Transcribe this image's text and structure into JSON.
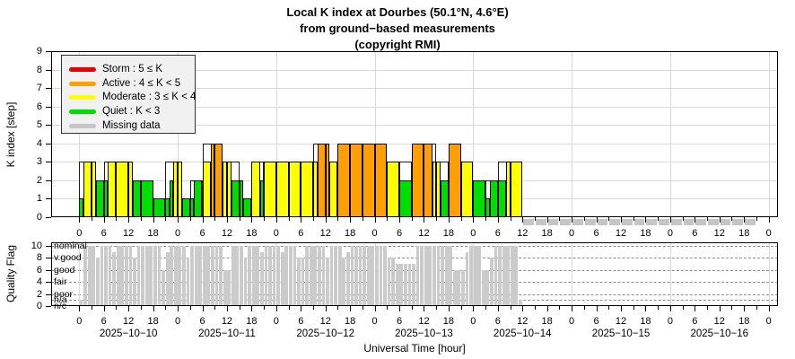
{
  "title": {
    "line1": "Local K index at Dourbes (50.1°N, 4.6°E)",
    "line2": "from ground−based measurements",
    "line3": "(copyright RMI)"
  },
  "k_chart": {
    "ylabel": "K index [step]",
    "yticks": [
      0,
      1,
      2,
      3,
      4,
      5,
      6,
      7,
      8,
      9
    ],
    "legend": [
      {
        "label": "Storm : 5 ≤ K",
        "color": "#e60000"
      },
      {
        "label": "Active : 4 ≤ K < 5",
        "color": "#ffa000"
      },
      {
        "label": "Moderate : 3 ≤ K < 4",
        "color": "#ffff00"
      },
      {
        "label": "Quiet : K < 3",
        "color": "#00dd00"
      },
      {
        "label": "Missing data",
        "color": "#c5c5c5"
      }
    ]
  },
  "qf_chart": {
    "ylabel": "Quality Flag",
    "yticks": [
      0,
      2,
      4,
      6,
      8,
      10
    ],
    "levels": [
      {
        "label": "nominal",
        "value": 10
      },
      {
        "label": "v.good",
        "value": 8
      },
      {
        "label": "good",
        "value": 6
      },
      {
        "label": "fair",
        "value": 4
      },
      {
        "label": "poor",
        "value": 2
      },
      {
        "label": "n/a",
        "value": 1
      },
      {
        "label": "n/c",
        "value": 0
      }
    ]
  },
  "xaxis": {
    "xlabel": "Universal Time [hour]",
    "hour_label_cycle": [
      0,
      6,
      12,
      18
    ],
    "days": [
      "2025−10−10",
      "2025−10−11",
      "2025−10−12",
      "2025−10−13",
      "2025−10−14",
      "2025−10−15",
      "2025−10−16"
    ]
  },
  "colors": {
    "storm": "#e60000",
    "active": "#ffa000",
    "moderate": "#ffff00",
    "quiet": "#00dd00",
    "missing": "#c5c5c5",
    "qf_bar": "#cbcbcb",
    "grid": "#d9d9d9"
  },
  "chart_data": [
    {
      "type": "bar",
      "title": "Local K index at Dourbes",
      "ylabel": "K index [step]",
      "ylim": [
        0,
        9
      ],
      "x_unit": "hours since 2025-10-10 00:00 UT",
      "hourly_k": [
        1,
        3,
        3,
        3,
        2,
        2,
        2,
        3,
        3,
        3,
        3,
        3,
        3,
        2,
        2,
        2,
        2,
        2,
        1,
        1,
        1,
        1,
        2,
        3,
        3,
        1,
        1,
        1,
        2,
        2,
        3,
        3,
        4,
        4,
        4,
        3,
        3,
        2,
        2,
        2,
        1,
        1,
        3,
        3,
        2,
        3,
        3,
        3,
        3,
        3,
        3,
        3,
        3,
        3,
        3,
        3,
        3,
        3,
        4,
        4,
        4,
        3,
        3,
        4,
        4,
        4,
        4,
        4,
        4,
        4,
        4,
        4,
        4,
        4,
        4,
        3,
        3,
        3,
        2,
        2,
        2,
        4,
        4,
        4,
        4,
        4,
        3,
        3,
        2,
        2,
        4,
        4,
        4,
        3,
        3,
        3,
        2,
        2,
        2,
        1,
        2,
        2,
        2,
        2,
        3,
        3,
        3,
        3
      ],
      "outline_slot_hours": 3,
      "outline_levels": [
        3,
        2,
        3,
        3,
        2,
        2,
        1,
        3,
        1,
        2,
        4,
        3,
        3,
        1,
        3,
        3,
        3,
        3,
        3,
        4,
        3,
        4,
        4,
        4,
        4,
        3,
        3,
        4,
        4,
        3,
        4,
        3,
        2,
        2,
        3,
        3
      ],
      "missing_data_hours": {
        "start": 108,
        "end": 165,
        "step": 3
      }
    },
    {
      "type": "bar",
      "title": "Quality Flag",
      "ylabel": "Quality Flag",
      "ylim": [
        0,
        10
      ],
      "x_unit": "hours since 2025-10-10 00:00 UT",
      "hourly_qf": [
        1,
        10,
        10,
        10,
        8,
        10,
        10,
        10,
        9,
        10,
        10,
        10,
        10,
        8,
        10,
        10,
        10,
        10,
        10,
        10,
        6,
        9,
        10,
        10,
        10,
        10,
        8,
        10,
        10,
        10,
        10,
        10,
        10,
        10,
        10,
        6,
        6,
        10,
        10,
        10,
        8,
        10,
        10,
        10,
        9,
        10,
        10,
        10,
        10,
        9,
        10,
        10,
        10,
        8,
        8,
        10,
        10,
        10,
        10,
        10,
        8,
        10,
        10,
        10,
        8,
        9,
        10,
        10,
        10,
        10,
        10,
        10,
        10,
        10,
        10,
        8,
        8,
        7,
        7,
        7,
        7,
        7,
        10,
        10,
        10,
        10,
        10,
        10,
        10,
        10,
        10,
        6,
        6,
        6,
        9,
        10,
        10,
        10,
        6,
        6,
        8,
        10,
        10,
        10,
        10,
        10,
        10,
        1
      ]
    }
  ]
}
